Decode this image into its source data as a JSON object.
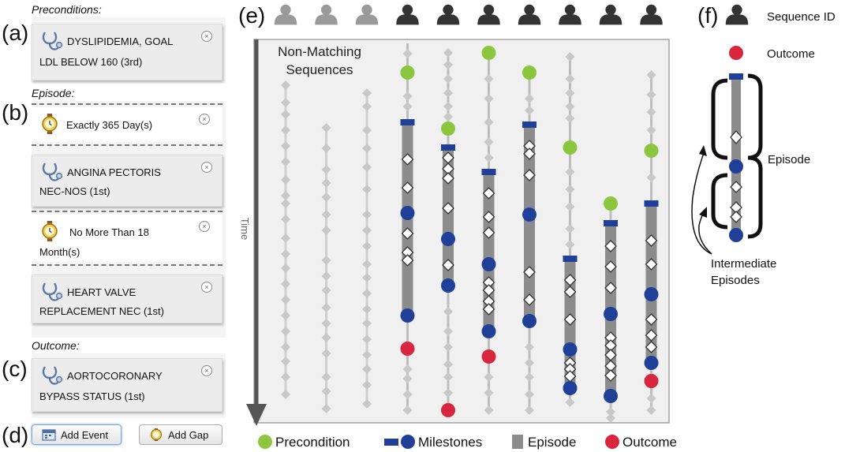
{
  "labels": {
    "a": "(a)",
    "b": "(b)",
    "c": "(c)",
    "d": "(d)",
    "e": "(e)",
    "f": "(f)"
  },
  "left_panel": {
    "preconditions_title": "Preconditions:",
    "episode_title": "Episode:",
    "outcome_title": "Outcome:",
    "precondition_card": {
      "line1": "DYSLIPIDEMIA, GOAL",
      "line2": "LDL BELOW 160 (3rd)"
    },
    "gap1": {
      "line1": "Exactly 365 Day(s)"
    },
    "event1": {
      "line1": "ANGINA PECTORIS",
      "line2": "NEC-NOS (1st)"
    },
    "gap2": {
      "line1": "No More Than 18",
      "line2": "Month(s)"
    },
    "event2": {
      "line1": "HEART VALVE",
      "line2": "REPLACEMENT NEC (1st)"
    },
    "outcome_card": {
      "line1": "AORTOCORONARY",
      "line2": "BYPASS STATUS (1st)"
    },
    "add_event_label": "Add Event",
    "add_gap_label": "Add Gap"
  },
  "main_view": {
    "non_matching_line1": "Non-Matching",
    "non_matching_line2": "Sequences",
    "time_label": "Time"
  },
  "legend": {
    "precondition": "Precondition",
    "milestones": "Milestones",
    "episode": "Episode",
    "outcome": "Outcome"
  },
  "key_panel": {
    "sequence_id": "Sequence ID",
    "outcome": "Outcome",
    "episode": "Episode",
    "intermediate_line1": "Intermediate",
    "intermediate_line2": "Episodes"
  },
  "colors": {
    "precondition": "#8cc63f",
    "milestone": "#1f3f99",
    "episode_bar": "#8c8c8c",
    "outcome": "#d7263d",
    "sequence_line": "#bdbdbd",
    "diamond_dim": "#c8c8c8",
    "icon_dim": "#9a9a9a",
    "icon_dark": "#333333"
  },
  "sequences": [
    {
      "matching": false,
      "events": [
        {
          "t": "d",
          "y": 108
        },
        {
          "t": "d",
          "y": 130
        },
        {
          "t": "d",
          "y": 145
        },
        {
          "t": "d",
          "y": 165
        },
        {
          "t": "d",
          "y": 185
        },
        {
          "t": "d",
          "y": 205
        },
        {
          "t": "d",
          "y": 228
        },
        {
          "t": "d",
          "y": 248
        },
        {
          "t": "d",
          "y": 258
        },
        {
          "t": "d",
          "y": 278
        },
        {
          "t": "d",
          "y": 302
        },
        {
          "t": "d",
          "y": 322
        },
        {
          "t": "d",
          "y": 340
        },
        {
          "t": "d",
          "y": 360
        },
        {
          "t": "d",
          "y": 380
        },
        {
          "t": "d",
          "y": 400
        },
        {
          "t": "d",
          "y": 420
        },
        {
          "t": "d",
          "y": 440
        },
        {
          "t": "d",
          "y": 458
        },
        {
          "t": "d",
          "y": 478
        },
        {
          "t": "d",
          "y": 500
        }
      ]
    },
    {
      "matching": false,
      "events": [
        {
          "t": "d",
          "y": 162
        },
        {
          "t": "d",
          "y": 188
        },
        {
          "t": "d",
          "y": 215
        },
        {
          "t": "d",
          "y": 232
        },
        {
          "t": "d",
          "y": 250
        },
        {
          "t": "d",
          "y": 272
        },
        {
          "t": "d",
          "y": 292
        },
        {
          "t": "d",
          "y": 330
        },
        {
          "t": "d",
          "y": 350
        },
        {
          "t": "d",
          "y": 368
        },
        {
          "t": "d",
          "y": 390
        },
        {
          "t": "d",
          "y": 410
        },
        {
          "t": "d",
          "y": 428
        },
        {
          "t": "d",
          "y": 448
        },
        {
          "t": "d",
          "y": 478
        },
        {
          "t": "d",
          "y": 496
        },
        {
          "t": "d",
          "y": 518
        }
      ]
    },
    {
      "matching": false,
      "events": [
        {
          "t": "d",
          "y": 118
        },
        {
          "t": "d",
          "y": 135
        },
        {
          "t": "d",
          "y": 165
        },
        {
          "t": "d",
          "y": 188
        },
        {
          "t": "d",
          "y": 212
        },
        {
          "t": "d",
          "y": 240
        },
        {
          "t": "d",
          "y": 272
        },
        {
          "t": "d",
          "y": 292
        },
        {
          "t": "d",
          "y": 312
        },
        {
          "t": "d",
          "y": 335
        },
        {
          "t": "d",
          "y": 352
        },
        {
          "t": "d",
          "y": 372
        },
        {
          "t": "d",
          "y": 392
        },
        {
          "t": "d",
          "y": 410
        },
        {
          "t": "d",
          "y": 430
        },
        {
          "t": "d",
          "y": 450
        },
        {
          "t": "d",
          "y": 468
        },
        {
          "t": "d",
          "y": 488
        },
        {
          "t": "d",
          "y": 512
        }
      ]
    },
    {
      "matching": true,
      "start": 55,
      "end": 520,
      "bar": [
        155,
        400
      ],
      "events": [
        {
          "t": "d",
          "y": 68
        },
        {
          "t": "p",
          "y": 92
        },
        {
          "t": "d",
          "y": 122
        },
        {
          "t": "d",
          "y": 135
        },
        {
          "t": "m",
          "y": 155
        },
        {
          "t": "w",
          "y": 202
        },
        {
          "t": "w",
          "y": 238
        },
        {
          "t": "b",
          "y": 270
        },
        {
          "t": "w",
          "y": 296
        },
        {
          "t": "w",
          "y": 320
        },
        {
          "t": "w",
          "y": 330
        },
        {
          "t": "b",
          "y": 400
        },
        {
          "t": "o",
          "y": 442
        },
        {
          "t": "d",
          "y": 468
        },
        {
          "t": "d",
          "y": 480
        },
        {
          "t": "d",
          "y": 500
        },
        {
          "t": "d",
          "y": 520
        }
      ]
    },
    {
      "matching": true,
      "start": 65,
      "end": 520,
      "bar": [
        187,
        362
      ],
      "events": [
        {
          "t": "d",
          "y": 67
        },
        {
          "t": "d",
          "y": 82
        },
        {
          "t": "d",
          "y": 100
        },
        {
          "t": "d",
          "y": 118
        },
        {
          "t": "d",
          "y": 135
        },
        {
          "t": "d",
          "y": 148
        },
        {
          "t": "p",
          "y": 163
        },
        {
          "t": "m",
          "y": 187
        },
        {
          "t": "w",
          "y": 200
        },
        {
          "t": "w",
          "y": 214
        },
        {
          "t": "w",
          "y": 226
        },
        {
          "t": "w",
          "y": 264
        },
        {
          "t": "b",
          "y": 303
        },
        {
          "t": "w",
          "y": 336
        },
        {
          "t": "b",
          "y": 362
        },
        {
          "t": "d",
          "y": 395
        },
        {
          "t": "d",
          "y": 420
        },
        {
          "t": "d",
          "y": 440
        },
        {
          "t": "d",
          "y": 462
        },
        {
          "t": "d",
          "y": 478
        },
        {
          "t": "d",
          "y": 498
        },
        {
          "t": "o",
          "y": 520
        }
      ]
    },
    {
      "matching": true,
      "start": 67,
      "end": 520,
      "bar": [
        218,
        420
      ],
      "events": [
        {
          "t": "p",
          "y": 67
        },
        {
          "t": "d",
          "y": 100
        },
        {
          "t": "d",
          "y": 125
        },
        {
          "t": "d",
          "y": 155
        },
        {
          "t": "d",
          "y": 180
        },
        {
          "t": "d",
          "y": 200
        },
        {
          "t": "m",
          "y": 218
        },
        {
          "t": "w",
          "y": 245
        },
        {
          "t": "w",
          "y": 275
        },
        {
          "t": "w",
          "y": 295
        },
        {
          "t": "b",
          "y": 335
        },
        {
          "t": "w",
          "y": 358
        },
        {
          "t": "w",
          "y": 368
        },
        {
          "t": "w",
          "y": 382
        },
        {
          "t": "w",
          "y": 392
        },
        {
          "t": "b",
          "y": 420
        },
        {
          "t": "o",
          "y": 452
        },
        {
          "t": "d",
          "y": 478
        },
        {
          "t": "d",
          "y": 498
        },
        {
          "t": "d",
          "y": 520
        }
      ]
    },
    {
      "matching": true,
      "start": 92,
      "end": 520,
      "bar": [
        158,
        407
      ],
      "events": [
        {
          "t": "p",
          "y": 92
        },
        {
          "t": "d",
          "y": 125
        },
        {
          "t": "d",
          "y": 140
        },
        {
          "t": "m",
          "y": 158
        },
        {
          "t": "w",
          "y": 185
        },
        {
          "t": "w",
          "y": 195
        },
        {
          "t": "w",
          "y": 222
        },
        {
          "t": "b",
          "y": 272
        },
        {
          "t": "w",
          "y": 345
        },
        {
          "t": "w",
          "y": 380
        },
        {
          "t": "b",
          "y": 407
        },
        {
          "t": "d",
          "y": 440
        },
        {
          "t": "d",
          "y": 460
        },
        {
          "t": "d",
          "y": 478
        },
        {
          "t": "d",
          "y": 500
        },
        {
          "t": "d",
          "y": 520
        }
      ]
    },
    {
      "matching": true,
      "start": 72,
      "end": 510,
      "bar": [
        328,
        492
      ],
      "events": [
        {
          "t": "d",
          "y": 72
        },
        {
          "t": "d",
          "y": 100
        },
        {
          "t": "d",
          "y": 118
        },
        {
          "t": "d",
          "y": 135
        },
        {
          "t": "d",
          "y": 150
        },
        {
          "t": "p",
          "y": 187
        },
        {
          "t": "d",
          "y": 218
        },
        {
          "t": "d",
          "y": 240
        },
        {
          "t": "d",
          "y": 262
        },
        {
          "t": "d",
          "y": 290
        },
        {
          "t": "d",
          "y": 310
        },
        {
          "t": "m",
          "y": 328
        },
        {
          "t": "w",
          "y": 355
        },
        {
          "t": "w",
          "y": 370
        },
        {
          "t": "w",
          "y": 405
        },
        {
          "t": "b",
          "y": 443
        },
        {
          "t": "w",
          "y": 460
        },
        {
          "t": "w",
          "y": 468
        },
        {
          "t": "w",
          "y": 477
        },
        {
          "t": "b",
          "y": 492
        },
        {
          "t": "d",
          "y": 510
        }
      ]
    },
    {
      "matching": true,
      "start": 258,
      "end": 527,
      "bar": [
        283,
        502
      ],
      "events": [
        {
          "t": "p",
          "y": 258
        },
        {
          "t": "m",
          "y": 283
        },
        {
          "t": "w",
          "y": 312
        },
        {
          "t": "w",
          "y": 338
        },
        {
          "t": "w",
          "y": 365
        },
        {
          "t": "b",
          "y": 398
        },
        {
          "t": "w",
          "y": 428
        },
        {
          "t": "w",
          "y": 438
        },
        {
          "t": "w",
          "y": 450
        },
        {
          "t": "w",
          "y": 464
        },
        {
          "t": "w",
          "y": 476
        },
        {
          "t": "b",
          "y": 502
        },
        {
          "t": "d",
          "y": 522
        },
        {
          "t": "d",
          "y": 530
        }
      ]
    },
    {
      "matching": true,
      "start": 95,
      "end": 520,
      "bar": [
        258,
        460
      ],
      "events": [
        {
          "t": "d",
          "y": 95
        },
        {
          "t": "d",
          "y": 120
        },
        {
          "t": "d",
          "y": 142
        },
        {
          "t": "d",
          "y": 165
        },
        {
          "t": "p",
          "y": 191
        },
        {
          "t": "d",
          "y": 225
        },
        {
          "t": "m",
          "y": 258
        },
        {
          "t": "w",
          "y": 305
        },
        {
          "t": "w",
          "y": 335
        },
        {
          "t": "b",
          "y": 373
        },
        {
          "t": "w",
          "y": 405
        },
        {
          "t": "w",
          "y": 425
        },
        {
          "t": "w",
          "y": 440
        },
        {
          "t": "b",
          "y": 460
        },
        {
          "t": "o",
          "y": 483
        },
        {
          "t": "d",
          "y": 505
        },
        {
          "t": "d",
          "y": 520
        }
      ]
    }
  ]
}
